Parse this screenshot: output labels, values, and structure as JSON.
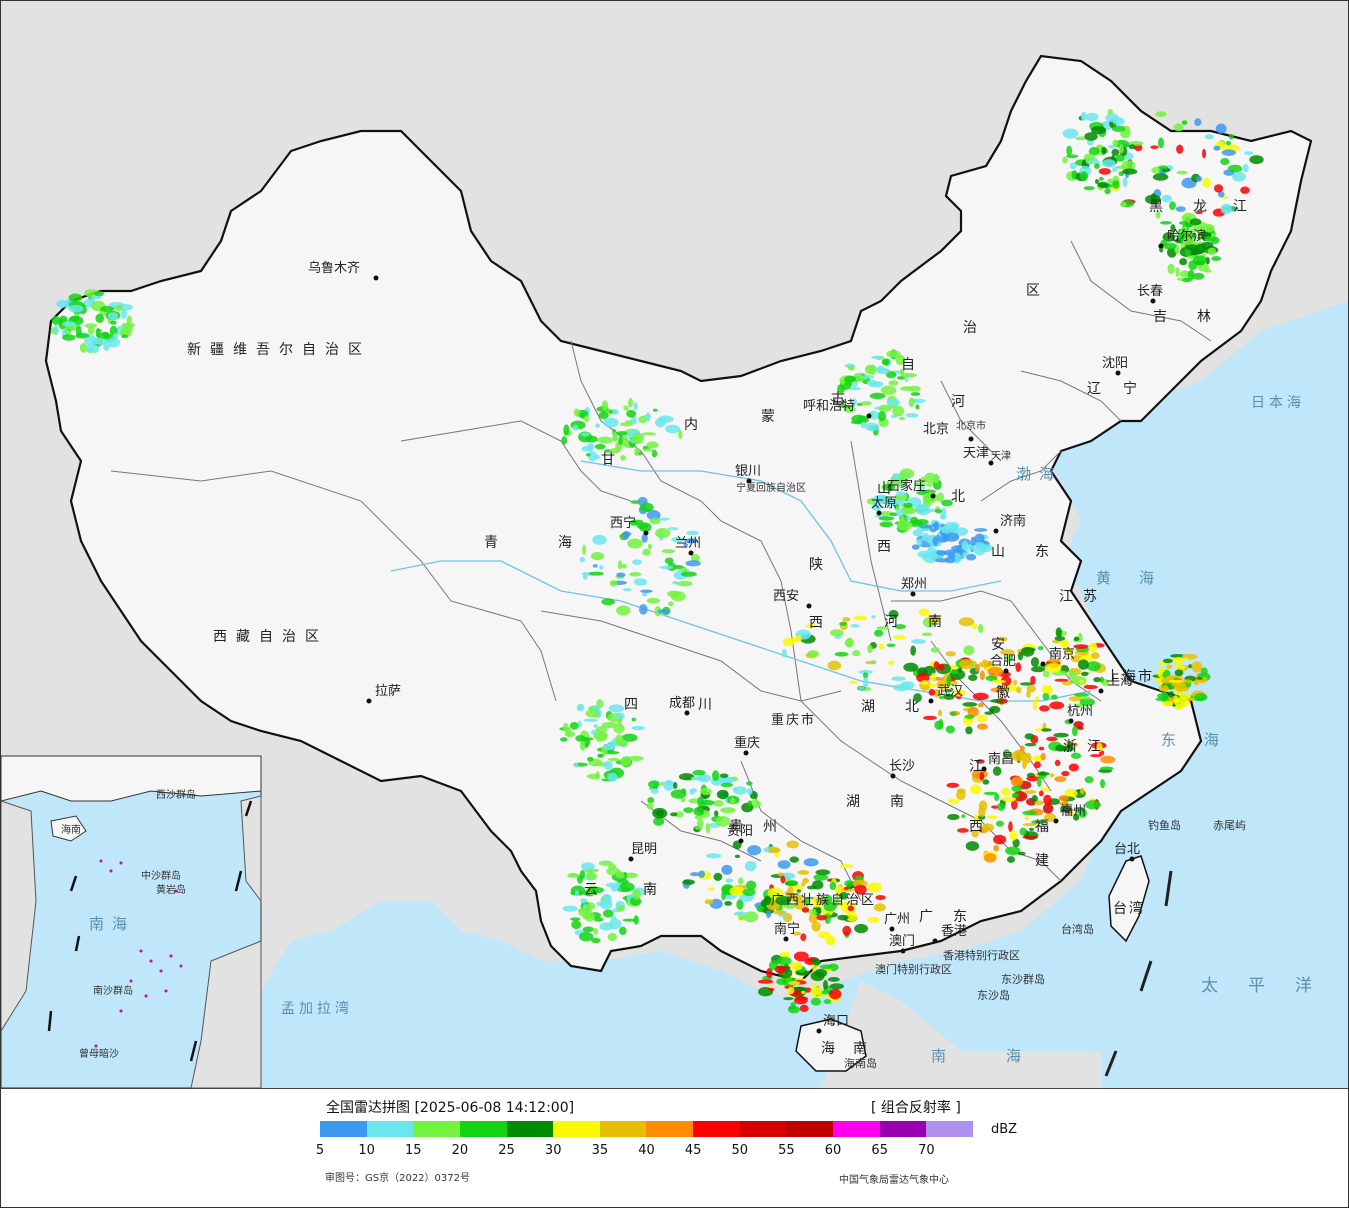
{
  "map": {
    "region_labels": {
      "xinjiang": "新疆维吾尔自治区",
      "tibet": "西藏自治区",
      "qinghai": "青海",
      "gansu": "甘",
      "sichuan": "四川",
      "yunnan": "云南",
      "neimenggu": [
        "内",
        "蒙",
        "古",
        "自",
        "治",
        "区"
      ],
      "heilongjiang": [
        "黑",
        "龙",
        "江"
      ],
      "jilin": "吉林",
      "liaoning": "辽宁",
      "hebei": [
        "河",
        "北"
      ],
      "shanxi": [
        "山",
        "西"
      ],
      "shaanxi": [
        "陕",
        "西"
      ],
      "henan": "河南",
      "shandong": "山东",
      "jiangsu": "江苏",
      "anhui": [
        "安",
        "徽"
      ],
      "hubei": "湖北",
      "hunan": "湖南",
      "jiangxi": [
        "江",
        "西"
      ],
      "zhejiang": "浙江",
      "fujian": [
        "福",
        "建"
      ],
      "guangdong": "广东",
      "guangxi": "广西壮族自治区",
      "guizhou": "贵州",
      "chongqing": "重庆市",
      "ningxia": "宁夏回族自治区",
      "hainan": "海南",
      "taiwan": "台湾",
      "shanghai": "上海市",
      "beijing": "北京市",
      "tianjin": "天津",
      "hk_sar": "香港特别行政区",
      "macao_sar": "澳门特别行政区"
    },
    "cities": {
      "urumqi": "乌鲁木齐",
      "lhasa": "拉萨",
      "xining": "西宁",
      "lanzhou": "兰州",
      "yinchuan": "银川",
      "hohhot": "呼和浩特",
      "beijing": "北京",
      "tianjin": "天津",
      "shijiazhuang": "石家庄",
      "taiyuan": "太原",
      "jinan": "济南",
      "zhengzhou": "郑州",
      "xian": "西安",
      "chengdu": "成都",
      "chongqing": "重庆",
      "guiyang": "贵阳",
      "kunming": "昆明",
      "nanning": "南宁",
      "guangzhou": "广州",
      "hongkong": "香港",
      "macao": "澳门",
      "haikou": "海口",
      "changsha": "长沙",
      "wuhan": "武汉",
      "nanchang": "南昌",
      "fuzhou": "福州",
      "hangzhou": "杭州",
      "shanghai": "上海",
      "nanjing": "南京",
      "hefei": "合肥",
      "taipei": "台北",
      "shenyang": "沈阳",
      "changchun": "长春",
      "harbin": "哈尔滨"
    },
    "seas": {
      "bohai": "渤海",
      "yellow_sea": "黄海",
      "east_sea": "东海",
      "pacific": "太平洋",
      "south_sea": "南海",
      "japan_sea": "日本海",
      "bengal": "孟加拉湾"
    },
    "islands": {
      "diaoyu": "钓鱼岛",
      "chiwei": "赤尾屿",
      "dongsha": "东沙岛",
      "dongsha_islands": "东沙群岛",
      "taiwan_island": "台湾岛",
      "hainan_island": "海南岛"
    },
    "inset": {
      "labels": [
        "中沙群岛",
        "黄岩岛",
        "南海",
        "南沙群岛",
        "西沙群岛",
        "曾母暗沙",
        "海南"
      ]
    }
  },
  "legend": {
    "title": "全国雷达拼图 [2025-06-08 14:12:00]",
    "product": "[ 组合反射率 ]",
    "unit": "dBZ",
    "colors": [
      "#3d99ee",
      "#6ae6ee",
      "#73f240",
      "#13d413",
      "#008a00",
      "#f9f900",
      "#e6c000",
      "#fc8d00",
      "#fc0000",
      "#d40000",
      "#c00000",
      "#ff00ef",
      "#9800b2",
      "#ae90ef"
    ],
    "ticks": [
      "5",
      "10",
      "15",
      "20",
      "25",
      "30",
      "35",
      "40",
      "45",
      "50",
      "55",
      "60",
      "65",
      "70"
    ],
    "approval": "审图号：GS京（2022）0372号",
    "organization": "中国气象局雷达气象中心"
  }
}
